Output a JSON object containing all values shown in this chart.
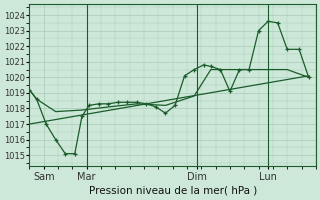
{
  "title": "Pression niveau de la mer( hPa )",
  "bg_color": "#cde8d8",
  "grid_color": "#a8cbb8",
  "line_color": "#1a5c2a",
  "ylim": [
    1014.3,
    1024.7
  ],
  "yticks": [
    1015,
    1016,
    1017,
    1018,
    1019,
    1020,
    1021,
    1022,
    1023,
    1024
  ],
  "xlim": [
    0,
    6.0
  ],
  "xlabel_ticks": [
    0.3,
    1.2,
    3.5,
    5.0
  ],
  "xlabel_labels": [
    "Sam",
    "Mar",
    "Dim",
    "Lun"
  ],
  "x_vlines": [
    1.2,
    3.5,
    5.0
  ],
  "line1_x": [
    0.0,
    0.15,
    0.35,
    0.55,
    0.75,
    0.95,
    1.1,
    1.25,
    1.45,
    1.65,
    1.85,
    2.05,
    2.25,
    2.45,
    2.65,
    2.85,
    3.05,
    3.25,
    3.45,
    3.65,
    3.8,
    4.0,
    4.2,
    4.4,
    4.6,
    4.8,
    5.0,
    5.2,
    5.4,
    5.65,
    5.85
  ],
  "line1_y": [
    1019.2,
    1018.6,
    1017.0,
    1016.0,
    1015.1,
    1015.1,
    1017.5,
    1018.2,
    1018.3,
    1018.3,
    1018.4,
    1018.4,
    1018.4,
    1018.3,
    1018.1,
    1017.7,
    1018.2,
    1020.1,
    1020.5,
    1020.8,
    1020.7,
    1020.5,
    1019.1,
    1020.5,
    1020.5,
    1023.0,
    1023.6,
    1023.5,
    1021.8,
    1021.8,
    1020.0
  ],
  "line2_x": [
    0.0,
    0.15,
    0.55,
    1.1,
    1.65,
    2.25,
    2.85,
    3.45,
    3.8,
    4.4,
    4.8,
    5.4,
    5.85
  ],
  "line2_y": [
    1019.2,
    1018.6,
    1017.8,
    1017.9,
    1018.1,
    1018.3,
    1018.2,
    1018.8,
    1020.5,
    1020.5,
    1020.5,
    1020.5,
    1020.0
  ],
  "line3_x": [
    0.0,
    5.85
  ],
  "line3_y": [
    1017.0,
    1020.1
  ]
}
